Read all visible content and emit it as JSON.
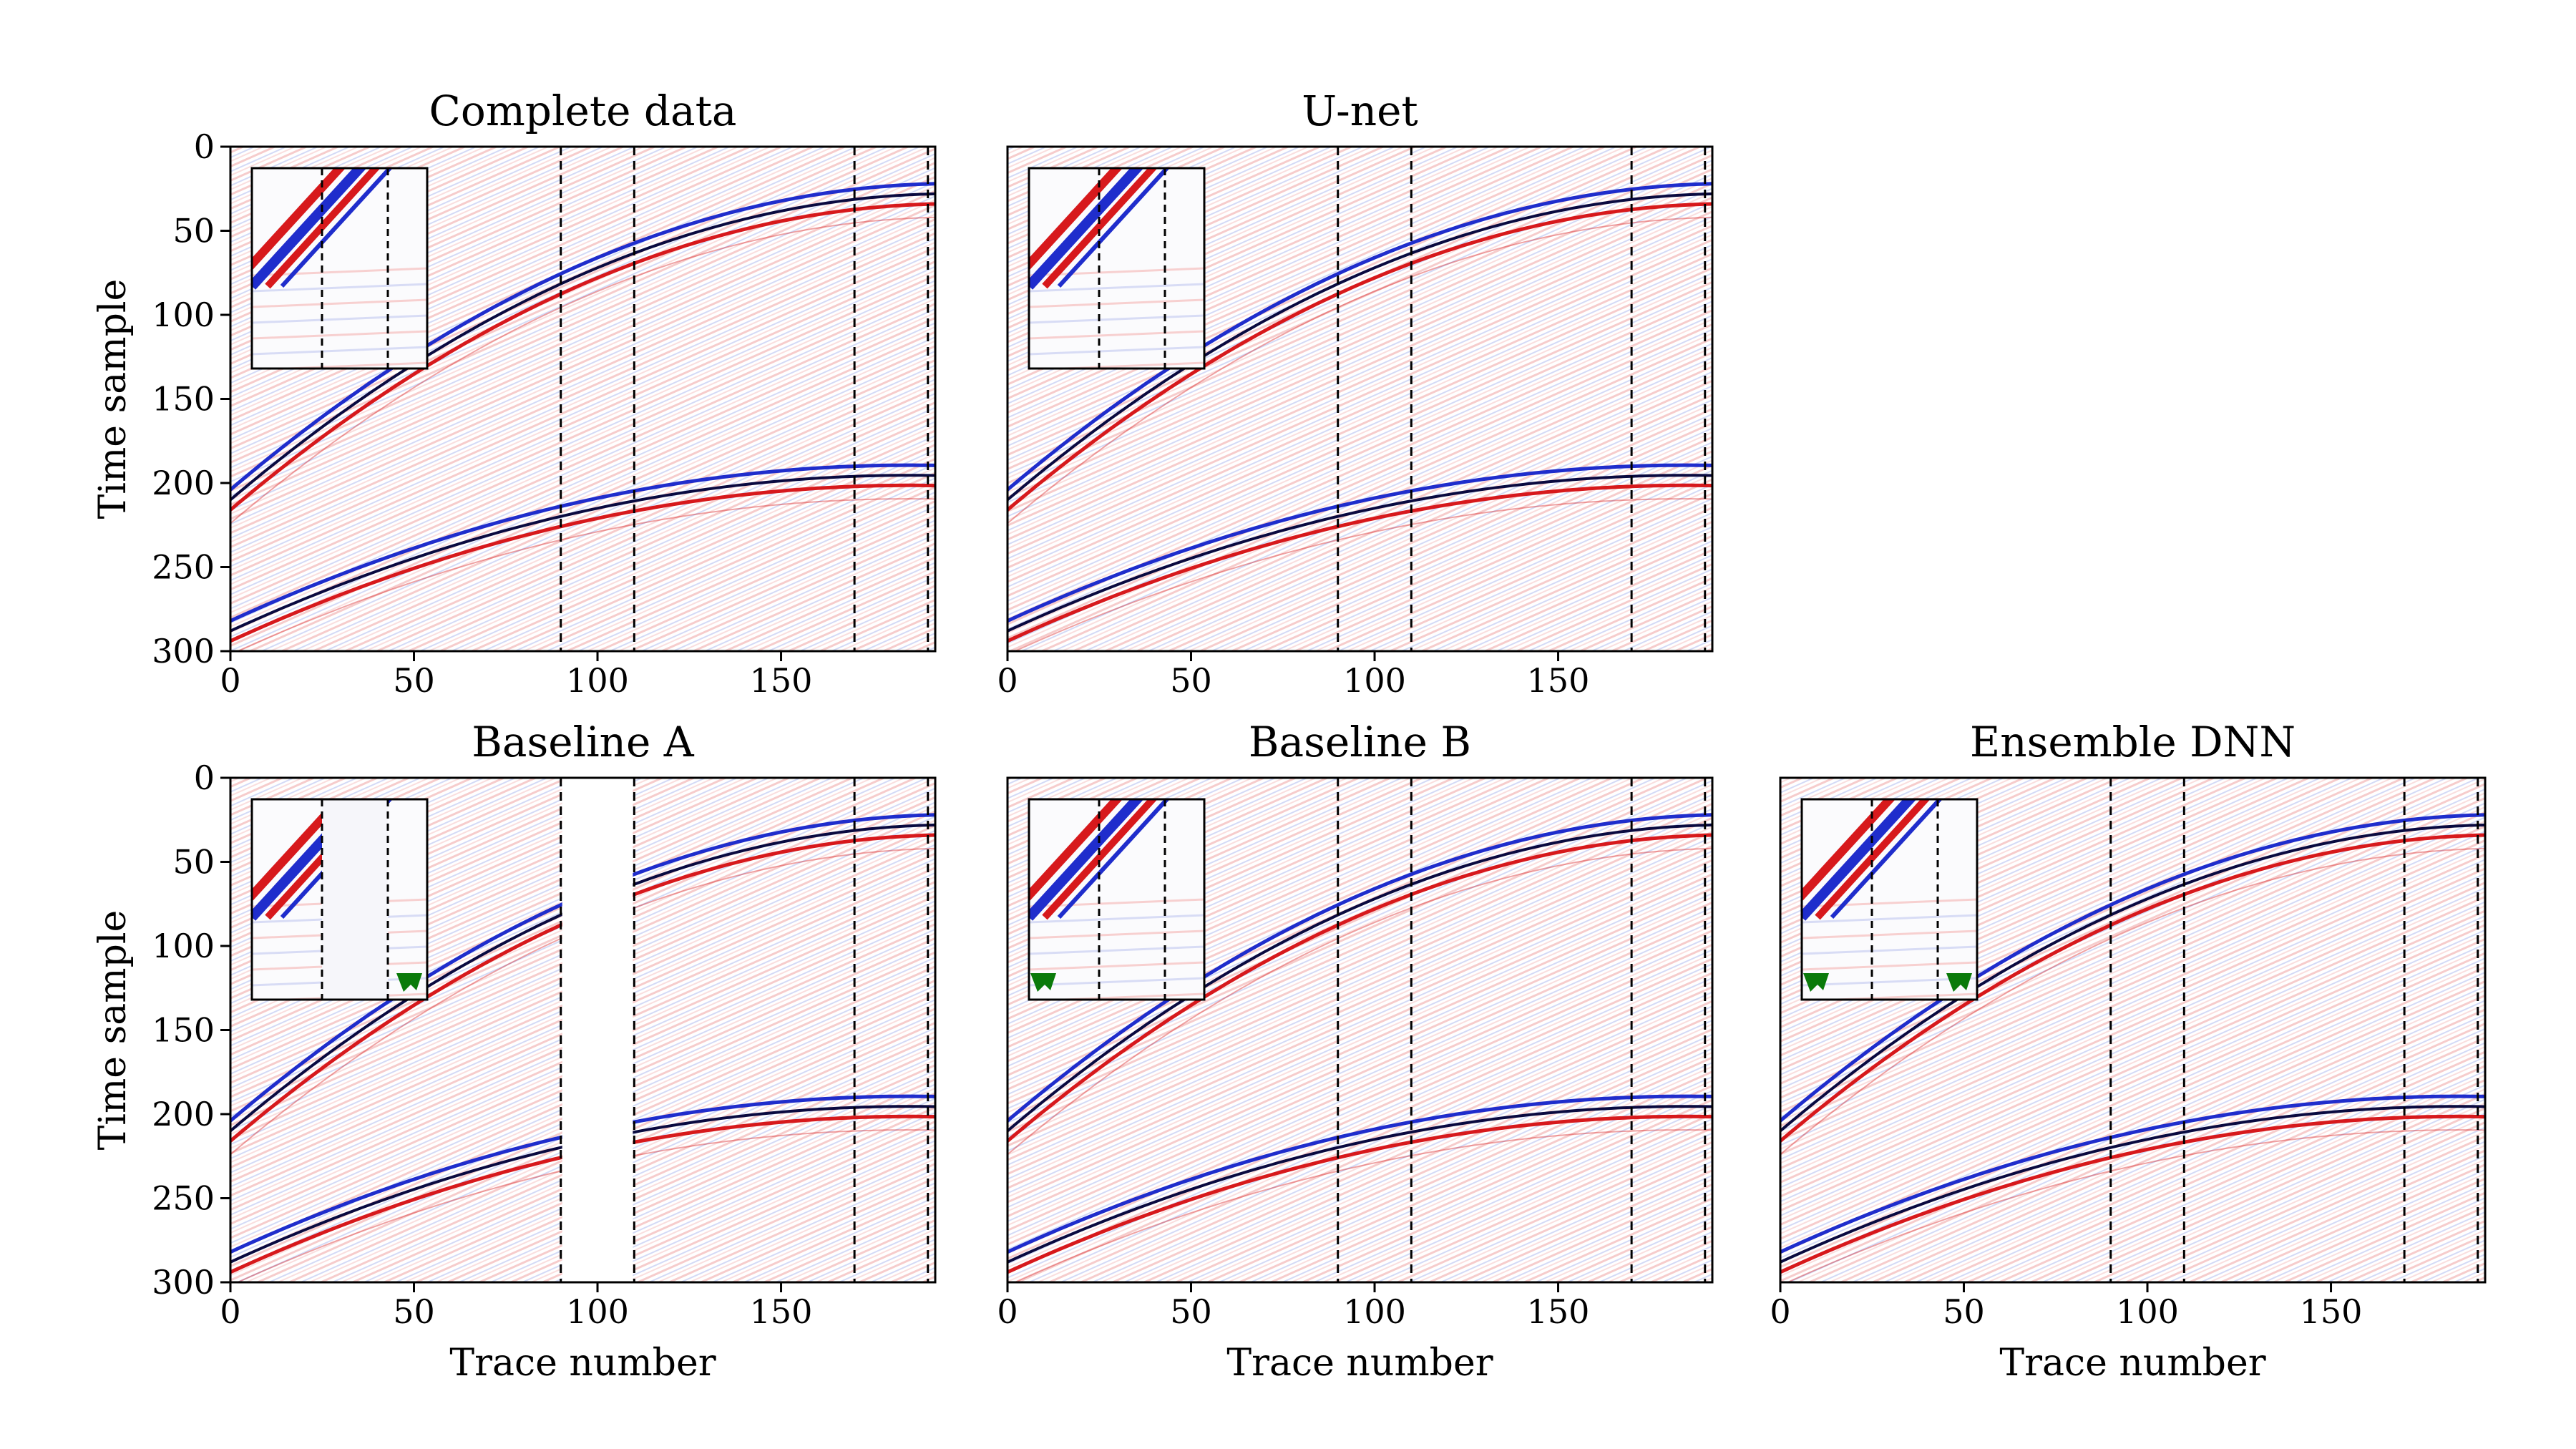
{
  "chart_data": [
    {
      "type": "heatmap",
      "title": "Complete data",
      "xlabel": "",
      "ylabel": "Time sample",
      "xlim": [
        0,
        192
      ],
      "ylim": [
        300,
        0
      ],
      "xticks": [
        0,
        50,
        100,
        150
      ],
      "yticks": [
        0,
        50,
        100,
        150,
        200,
        250,
        300
      ],
      "missing_trace_boundaries": [
        90,
        110,
        170,
        190
      ],
      "gap_blanked": false,
      "inset_present": true,
      "inset_boundaries": [
        24,
        43
      ],
      "arrows_at_traces": []
    },
    {
      "type": "heatmap",
      "title": "U-net",
      "xlabel": "",
      "ylabel": "",
      "xlim": [
        0,
        192
      ],
      "ylim": [
        300,
        0
      ],
      "xticks": [
        0,
        50,
        100,
        150
      ],
      "yticks": [],
      "missing_trace_boundaries": [
        90,
        110,
        170,
        190
      ],
      "gap_blanked": false,
      "inset_present": true,
      "inset_boundaries": [
        24,
        43
      ],
      "arrows_at_traces": []
    },
    {
      "type": "heatmap",
      "title": "Baseline A",
      "xlabel": "Trace number",
      "ylabel": "Time sample",
      "xlim": [
        0,
        192
      ],
      "ylim": [
        300,
        0
      ],
      "xticks": [
        0,
        50,
        100,
        150
      ],
      "yticks": [
        0,
        50,
        100,
        150,
        200,
        250,
        300
      ],
      "missing_trace_boundaries": [
        90,
        110,
        170,
        190
      ],
      "gap_blanked": true,
      "inset_present": true,
      "inset_boundaries": [
        24,
        43
      ],
      "arrows_at_traces": [
        50
      ]
    },
    {
      "type": "heatmap",
      "title": "Baseline B",
      "xlabel": "Trace number",
      "ylabel": "",
      "xlim": [
        0,
        192
      ],
      "ylim": [
        300,
        0
      ],
      "xticks": [
        0,
        50,
        100,
        150
      ],
      "yticks": [],
      "missing_trace_boundaries": [
        90,
        110,
        170,
        190
      ],
      "gap_blanked": false,
      "inset_present": true,
      "inset_boundaries": [
        24,
        43
      ],
      "arrows_at_traces": [
        8
      ]
    },
    {
      "type": "heatmap",
      "title": "Ensemble DNN",
      "xlabel": "Trace number",
      "ylabel": "",
      "xlim": [
        0,
        192
      ],
      "ylim": [
        300,
        0
      ],
      "xticks": [
        0,
        50,
        100,
        150
      ],
      "yticks": [],
      "missing_trace_boundaries": [
        90,
        110,
        170,
        190
      ],
      "gap_blanked": false,
      "inset_present": true,
      "inset_boundaries": [
        24,
        43
      ],
      "arrows_at_traces": [
        8,
        50
      ]
    }
  ],
  "colors": {
    "positive": "#d7191c",
    "negative": "#1f2dcc",
    "arrow": "#0a7a0a",
    "background": "#ffffff",
    "axis": "#000000"
  }
}
